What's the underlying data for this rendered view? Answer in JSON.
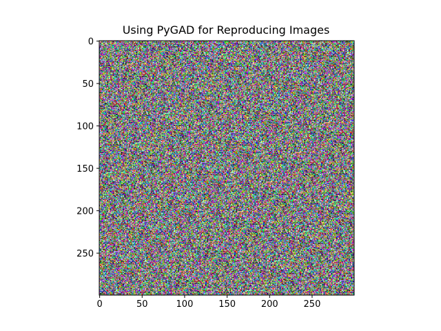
{
  "chart_data": {
    "type": "heatmap",
    "title": "Using PyGAD for Reproducing Images",
    "xlabel": "",
    "ylabel": "",
    "image_width": 300,
    "image_height": 300,
    "colormap": "rgb-noise",
    "xlim": [
      -0.5,
      299.5
    ],
    "ylim": [
      299.5,
      -0.5
    ],
    "y_axis_inverted": true,
    "grid": false,
    "legend": "none",
    "x_ticks": [
      0,
      50,
      100,
      150,
      200,
      250
    ],
    "x_tick_labels": [
      "0",
      "50",
      "100",
      "150",
      "200",
      "250"
    ],
    "y_ticks": [
      0,
      50,
      100,
      150,
      200,
      250
    ],
    "y_tick_labels": [
      "0",
      "50",
      "100",
      "150",
      "200",
      "250"
    ]
  }
}
